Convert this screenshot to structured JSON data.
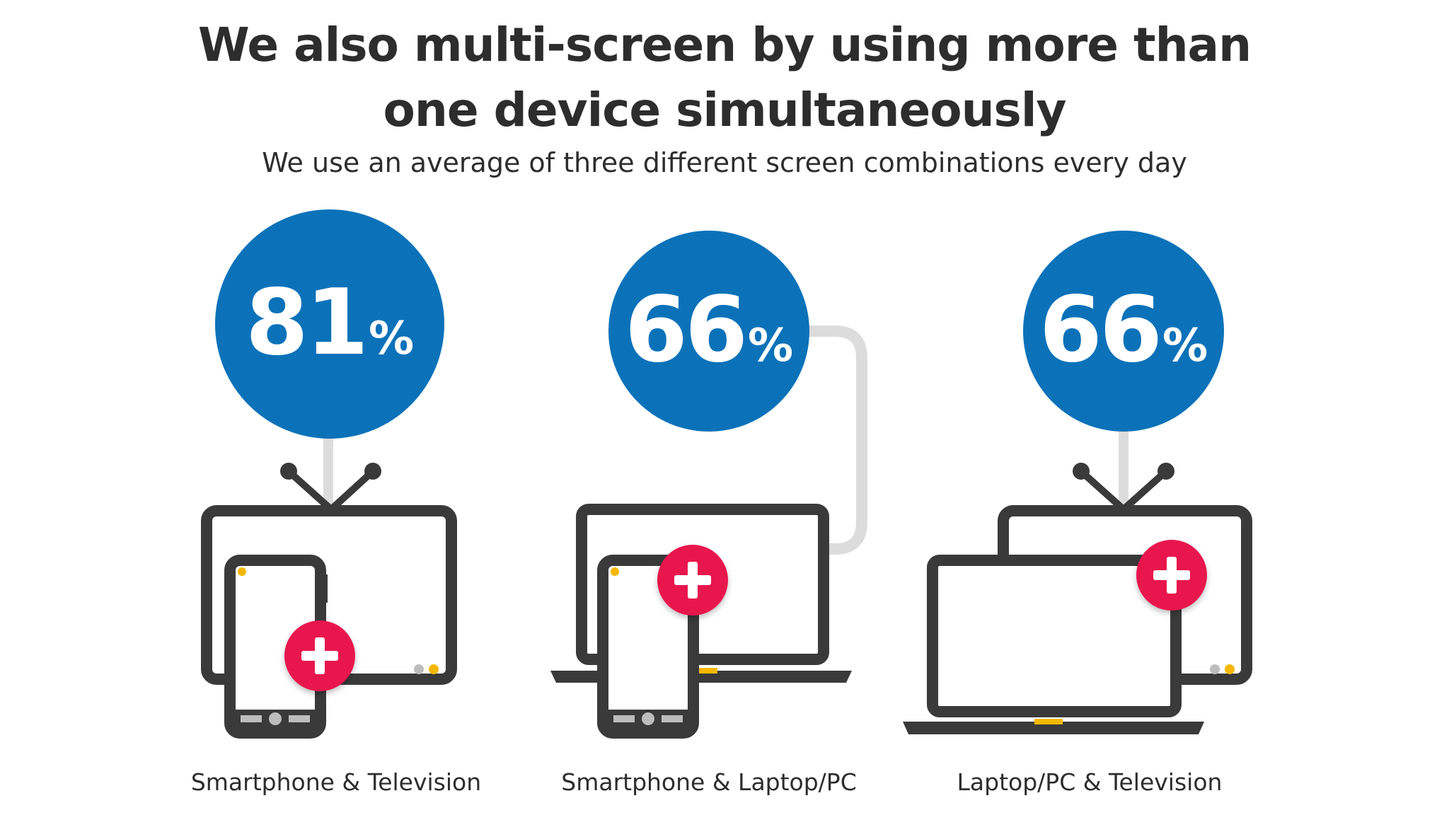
{
  "header": {
    "title_line1": "We also multi-screen by using more than",
    "title_line2": "one device simultaneously",
    "subtitle": "We use an average of three different screen combinations every day"
  },
  "combos": [
    {
      "value": "81",
      "unit": "%",
      "label": "Smartphone & Television",
      "icons": [
        "television-icon",
        "smartphone-icon",
        "plus-icon"
      ]
    },
    {
      "value": "66",
      "unit": "%",
      "label": "Smartphone & Laptop/PC",
      "icons": [
        "laptop-icon",
        "smartphone-icon",
        "plus-icon"
      ]
    },
    {
      "value": "66",
      "unit": "%",
      "label": "Laptop/PC & Television",
      "icons": [
        "television-icon",
        "laptop-icon",
        "plus-icon"
      ]
    }
  ],
  "colors": {
    "circle_blue": "#0b72b9",
    "plus_red": "#e8154d",
    "device_dark": "#3a3a3a",
    "accent_yellow": "#f5b800",
    "connector_grey": "#dcdcdc"
  }
}
